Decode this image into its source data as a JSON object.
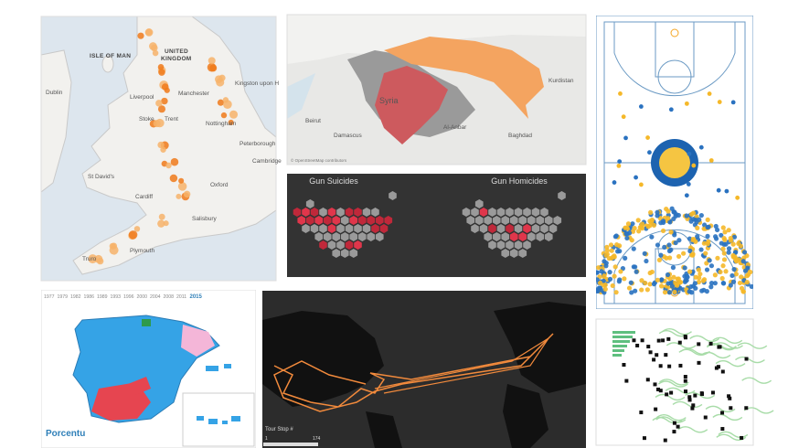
{
  "uk_map": {
    "places": [
      "ISLE OF MAN",
      "UNITED",
      "KINGDOM",
      "Kingston upon H",
      "Liverpool",
      "Manchester",
      "Stoke",
      "Trent",
      "Nottingham",
      "Peterborough",
      "Cambridge",
      "St David's",
      "Oxford",
      "Cardiff",
      "Salisbury",
      "Plymouth",
      "Truro",
      "Dublin"
    ]
  },
  "syria_map": {
    "places": [
      "Syria",
      "Beirut",
      "Damascus",
      "Al-Anbar",
      "Baghdad",
      "Kurdistan"
    ],
    "attribution": "© OpenStreetMap contributors"
  },
  "gun_map": {
    "titles": [
      "Gun Suicides",
      "Gun Homicides"
    ]
  },
  "spain_map": {
    "years": [
      "1977",
      "1979",
      "1982",
      "1986",
      "1989",
      "1993",
      "1996",
      "2000",
      "2004",
      "2008",
      "2011",
      "2015"
    ],
    "logo": "Porcentu"
  },
  "tour_map": {
    "slider_label": "Tour Stop #",
    "slider_min": 1,
    "slider_max": 174
  }
}
